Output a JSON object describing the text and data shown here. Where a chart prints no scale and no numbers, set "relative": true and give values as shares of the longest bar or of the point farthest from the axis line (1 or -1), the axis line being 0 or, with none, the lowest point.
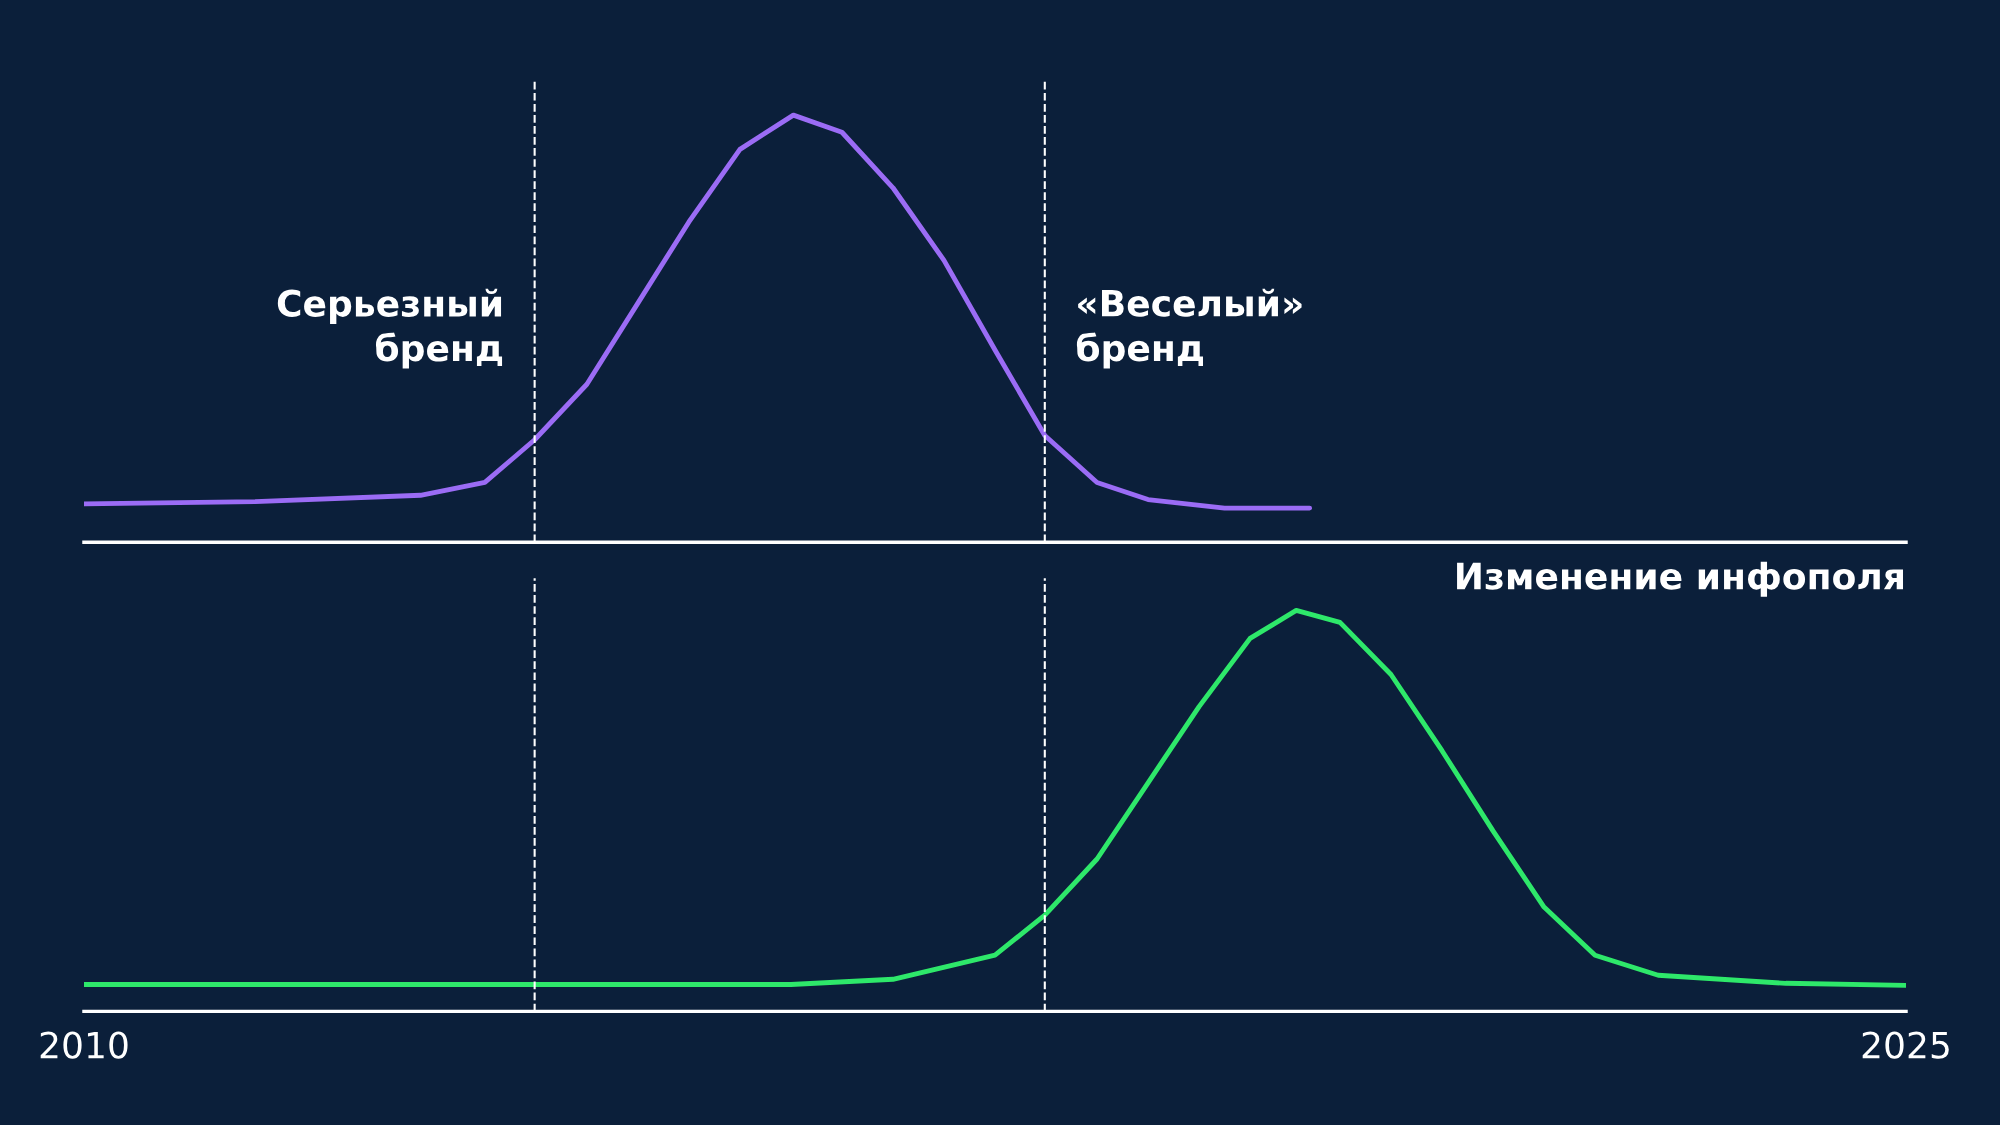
{
  "chart_data": [
    {
      "type": "line",
      "relative": true,
      "xlim": [
        2010,
        2025
      ],
      "tick_labels": false,
      "xlabel": "Изменение инфополя",
      "series": [
        {
          "color": "#9b6cf5",
          "x": [
            2010.0,
            2011.41,
            2012.77,
            2013.3,
            2013.71,
            2014.14,
            2014.56,
            2014.98,
            2015.4,
            2015.84,
            2016.24,
            2016.66,
            2017.08,
            2017.5,
            2017.91,
            2018.34,
            2018.76,
            2019.39,
            2020.09
          ],
          "values": [
            0.09,
            0.095,
            0.11,
            0.14,
            0.24,
            0.37,
            0.56,
            0.75,
            0.92,
            1,
            0.96,
            0.83,
            0.66,
            0.45,
            0.25,
            0.14,
            0.1,
            0.08,
            0.08
          ]
        }
      ],
      "ref_lines": [
        {
          "axis": "x",
          "value": 2013.71,
          "label": "Серьезный\nбренд",
          "color": "#ffffff",
          "line_style": "dashed"
        },
        {
          "axis": "x",
          "value": 2017.91,
          "label": "«Веселый»\nбренд",
          "color": "#ffffff",
          "line_style": "dashed"
        }
      ]
    },
    {
      "type": "line",
      "relative": true,
      "xlim": [
        2010,
        2025
      ],
      "xticks": [
        2010,
        2025
      ],
      "tick_labels": "x",
      "series": [
        {
          "color": "#2ee86a",
          "x": [
            2010.0,
            2013.51,
            2015.82,
            2016.66,
            2017.5,
            2017.91,
            2018.34,
            2018.76,
            2019.18,
            2019.6,
            2019.98,
            2020.34,
            2020.76,
            2021.18,
            2021.6,
            2022.02,
            2022.44,
            2022.96,
            2024.01,
            2025.0
          ],
          "values": [
            0.067,
            0.067,
            0.067,
            0.08,
            0.14,
            0.24,
            0.38,
            0.57,
            0.76,
            0.93,
            1,
            0.97,
            0.84,
            0.65,
            0.45,
            0.26,
            0.14,
            0.09,
            0.07,
            0.065
          ]
        }
      ],
      "ref_lines": [
        {
          "axis": "x",
          "value": 2013.71,
          "label": null,
          "color": "#ffffff",
          "line_style": "dashed"
        },
        {
          "axis": "x",
          "value": 2017.91,
          "label": null,
          "color": "#ffffff",
          "line_style": "dashed"
        }
      ]
    }
  ]
}
